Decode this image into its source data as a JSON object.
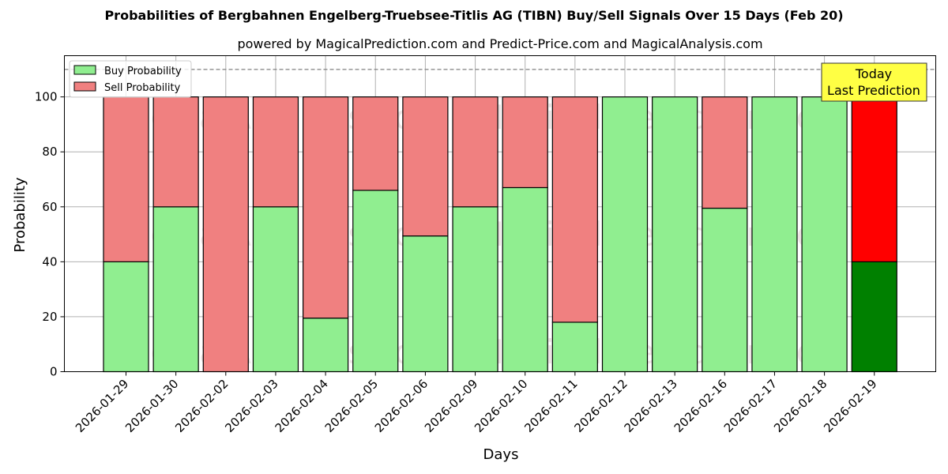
{
  "header": {
    "title": "Probabilities of Bergbahnen Engelberg-Truebsee-Titlis AG (TIBN) Buy/Sell Signals Over 15 Days (Feb 20)",
    "subtitle": "powered by MagicalPrediction.com and Predict-Price.com and MagicalAnalysis.com"
  },
  "legend": {
    "buy_label": "Buy Probability",
    "sell_label": "Sell Probability"
  },
  "annotation": {
    "line1": "Today",
    "line2": "Last Prediction"
  },
  "watermarks": [
    "MagicalAnalysis.com",
    "MagicalPrediction.com"
  ],
  "colors": {
    "buy": "#90ee90",
    "sell": "#f08080",
    "today_buy": "#008000",
    "today_sell": "#ff0000",
    "annotation_bg": "#ffff44",
    "grid": "#b0b0b0",
    "threshold_line": "#808080"
  },
  "chart_data": {
    "type": "bar",
    "stacked": true,
    "title": "Probabilities of Bergbahnen Engelberg-Truebsee-Titlis AG (TIBN) Buy/Sell Signals Over 15 Days (Feb 20)",
    "subtitle": "powered by MagicalPrediction.com and Predict-Price.com and MagicalAnalysis.com",
    "xlabel": "Days",
    "ylabel": "Probability",
    "ylim": [
      0,
      115
    ],
    "yticks": [
      0,
      20,
      40,
      60,
      80,
      100
    ],
    "grid": true,
    "legend_position": "upper left",
    "threshold_line": 110,
    "categories": [
      "2026-01-29",
      "2026-01-30",
      "2026-02-02",
      "2026-02-03",
      "2026-02-04",
      "2026-02-05",
      "2026-02-06",
      "2026-02-09",
      "2026-02-10",
      "2026-02-11",
      "2026-02-12",
      "2026-02-13",
      "2026-02-16",
      "2026-02-17",
      "2026-02-18",
      "2026-02-19"
    ],
    "series": [
      {
        "name": "Buy Probability",
        "values": [
          40,
          60,
          0,
          60,
          19.5,
          66,
          49.4,
          60,
          67,
          18,
          100,
          100,
          59.5,
          100,
          100,
          40
        ]
      },
      {
        "name": "Sell Probability",
        "values": [
          60,
          40,
          100,
          40,
          80.5,
          34,
          50.6,
          40,
          33,
          82,
          0,
          0,
          40.5,
          0,
          0,
          60
        ]
      }
    ],
    "highlighted_category": "2026-02-19",
    "annotation": "Today\nLast Prediction"
  }
}
